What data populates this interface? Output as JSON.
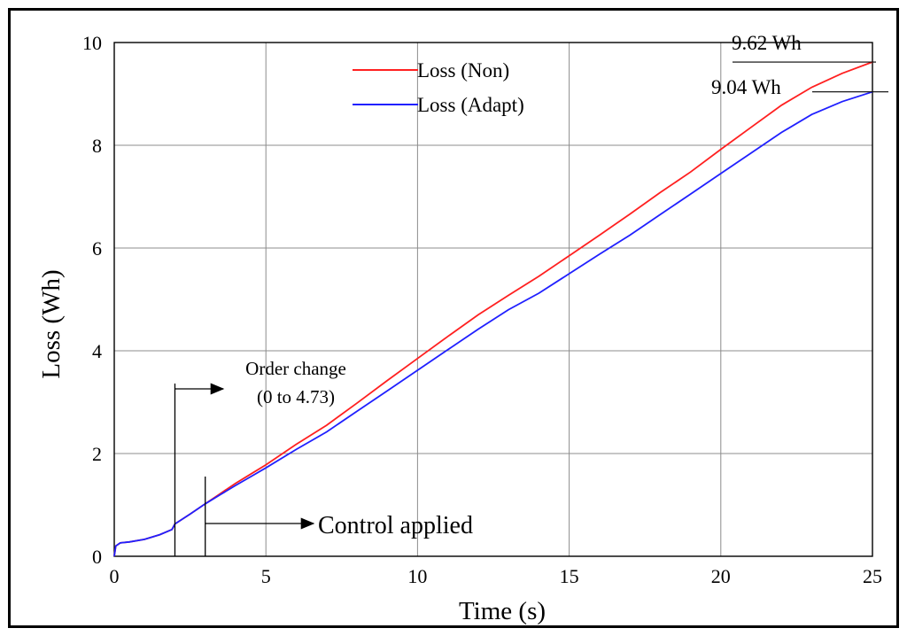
{
  "chart_data": {
    "type": "line",
    "xlabel": "Time (s)",
    "ylabel": "Loss (Wh)",
    "xlim": [
      0,
      25
    ],
    "ylim": [
      0,
      10
    ],
    "xticks": [
      0,
      5,
      10,
      15,
      20,
      25
    ],
    "yticks": [
      0,
      2,
      4,
      6,
      8,
      10
    ],
    "grid": true,
    "legend_position": "top-center",
    "series": [
      {
        "name": "Loss (Non)",
        "color": "#ff2020",
        "x": [
          0,
          0.05,
          0.2,
          0.5,
          1.0,
          1.5,
          1.9,
          2.0,
          2.5,
          3.0,
          3.5,
          4.0,
          4.5,
          5.0,
          6.0,
          7.0,
          8.0,
          9.0,
          10.0,
          11.0,
          12.0,
          13.0,
          14.0,
          15.0,
          16.0,
          17.0,
          18.0,
          19.0,
          20.0,
          21.0,
          22.0,
          23.0,
          24.0,
          25.0
        ],
        "y": [
          0,
          0.2,
          0.26,
          0.28,
          0.33,
          0.42,
          0.52,
          0.63,
          0.82,
          1.02,
          1.22,
          1.42,
          1.6,
          1.78,
          2.18,
          2.55,
          2.98,
          3.42,
          3.85,
          4.28,
          4.7,
          5.08,
          5.45,
          5.85,
          6.25,
          6.66,
          7.08,
          7.48,
          7.92,
          8.35,
          8.78,
          9.13,
          9.4,
          9.62
        ]
      },
      {
        "name": "Loss (Adapt)",
        "color": "#2020ff",
        "x": [
          0,
          0.05,
          0.2,
          0.5,
          1.0,
          1.5,
          1.9,
          2.0,
          2.5,
          3.0,
          3.5,
          4.0,
          4.5,
          5.0,
          6.0,
          7.0,
          8.0,
          9.0,
          10.0,
          11.0,
          12.0,
          13.0,
          14.0,
          15.0,
          16.0,
          17.0,
          18.0,
          19.0,
          20.0,
          21.0,
          22.0,
          23.0,
          24.0,
          25.0
        ],
        "y": [
          0,
          0.2,
          0.26,
          0.28,
          0.33,
          0.42,
          0.52,
          0.63,
          0.82,
          1.02,
          1.2,
          1.38,
          1.55,
          1.72,
          2.08,
          2.42,
          2.82,
          3.22,
          3.62,
          4.02,
          4.42,
          4.8,
          5.12,
          5.5,
          5.88,
          6.25,
          6.65,
          7.05,
          7.45,
          7.85,
          8.25,
          8.6,
          8.85,
          9.04
        ]
      }
    ],
    "annotations": {
      "order_change": {
        "line1": "Order change",
        "line2": "(0 to 4.73)",
        "x": 2.0
      },
      "control_applied": {
        "text": "Control applied",
        "x": 3.0
      },
      "end_non": {
        "text": "9.62 Wh",
        "value": 9.62
      },
      "end_adapt": {
        "text": "9.04 Wh",
        "value": 9.04
      }
    }
  }
}
